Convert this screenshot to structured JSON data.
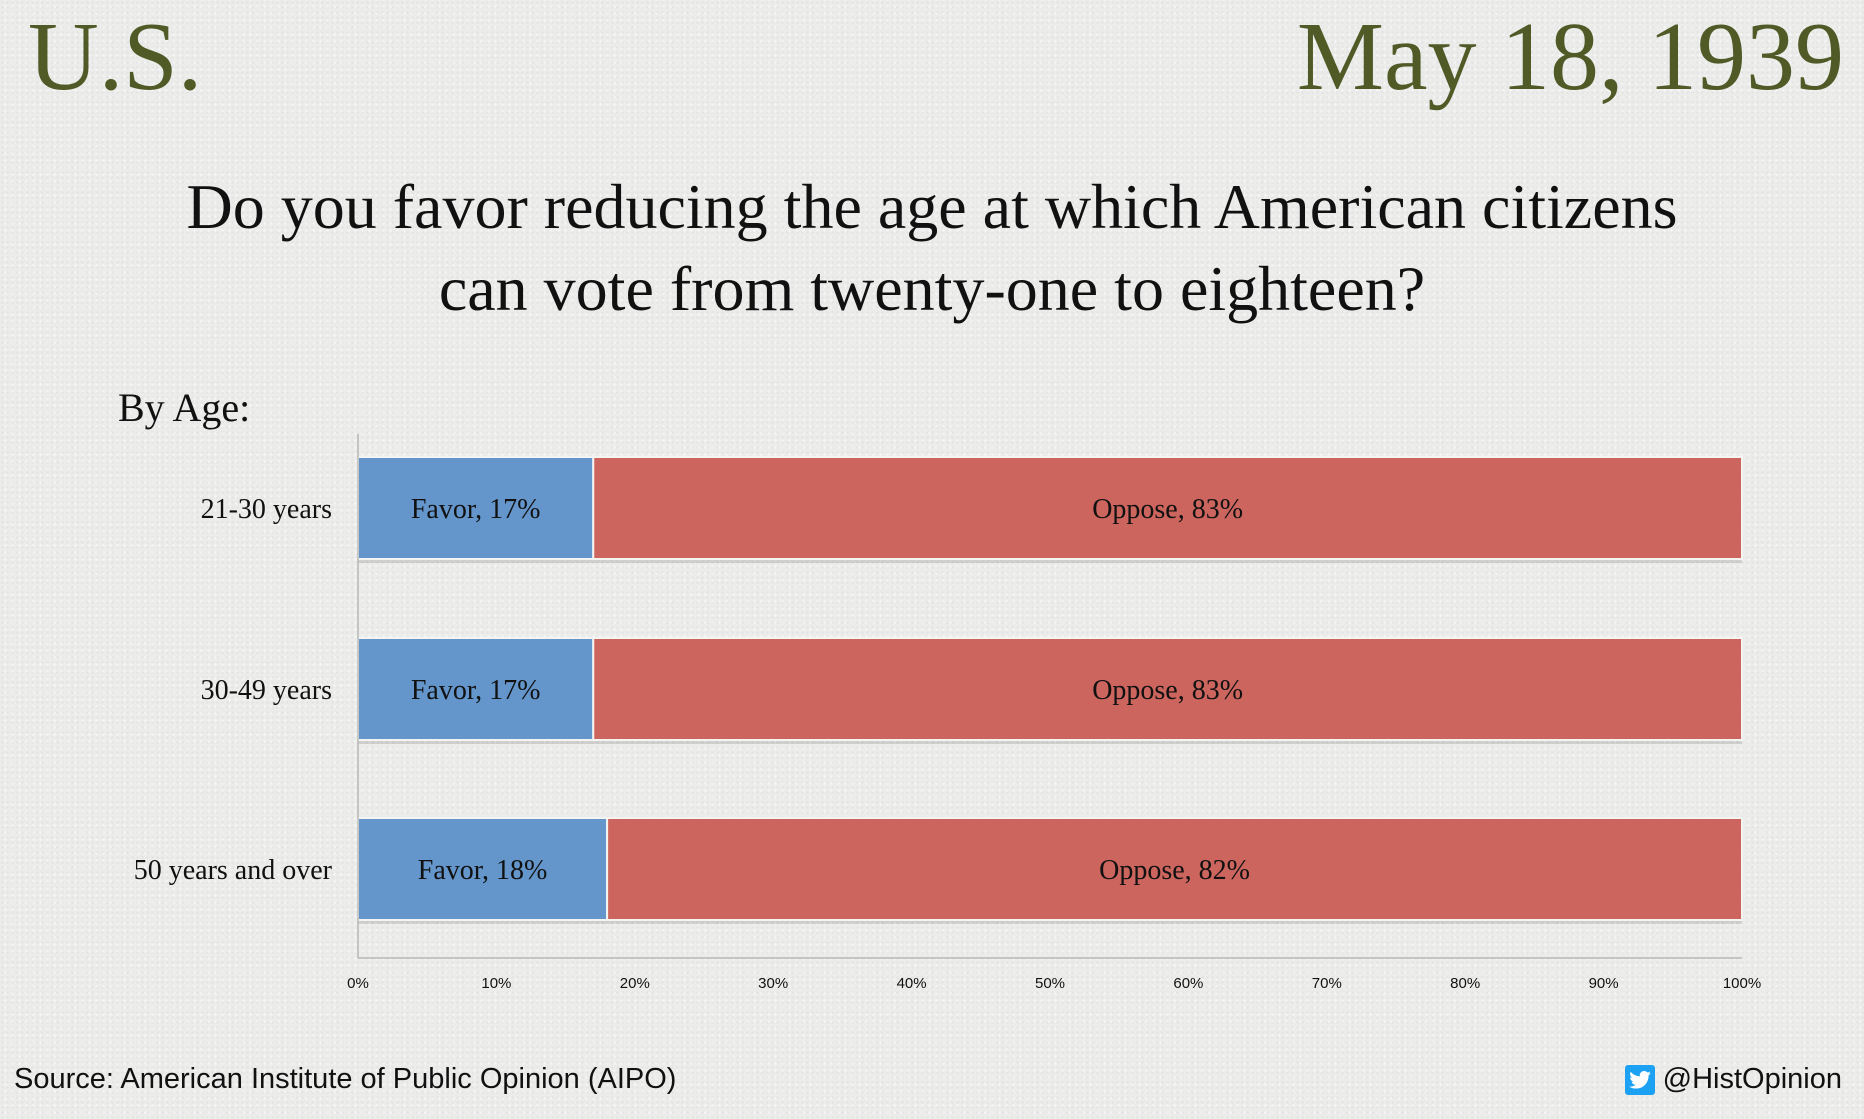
{
  "header": {
    "region": "U.S.",
    "date": "May 18, 1939",
    "question_line1": "Do you favor reducing the age at which American citizens",
    "question_line2": "can vote from twenty-one to eighteen?",
    "subtitle": "By Age:"
  },
  "footer": {
    "source": "Source: American Institute of Public Opinion (AIPO)",
    "handle": "@HistOpinion",
    "handle_icon": "twitter-bird-icon"
  },
  "chart_data": {
    "type": "bar",
    "orientation": "horizontal",
    "stacked": true,
    "categories": [
      "21-30 years",
      "30-49 years",
      "50 years and over"
    ],
    "series": [
      {
        "key": "favor",
        "color": "#6496cb",
        "values": [
          17,
          17,
          18
        ],
        "labels": [
          "Favor, 17%",
          "Favor, 17%",
          "Favor, 18%"
        ]
      },
      {
        "key": "oppose",
        "color": "#cd655f",
        "values": [
          83,
          83,
          82
        ],
        "labels": [
          "Oppose, 83%",
          "Oppose, 83%",
          "Oppose, 82%"
        ]
      }
    ],
    "xlim": [
      0,
      100
    ],
    "x_ticks": [
      "0%",
      "10%",
      "20%",
      "30%",
      "40%",
      "50%",
      "60%",
      "70%",
      "80%",
      "90%",
      "100%"
    ],
    "grid": false,
    "legend": "none"
  }
}
